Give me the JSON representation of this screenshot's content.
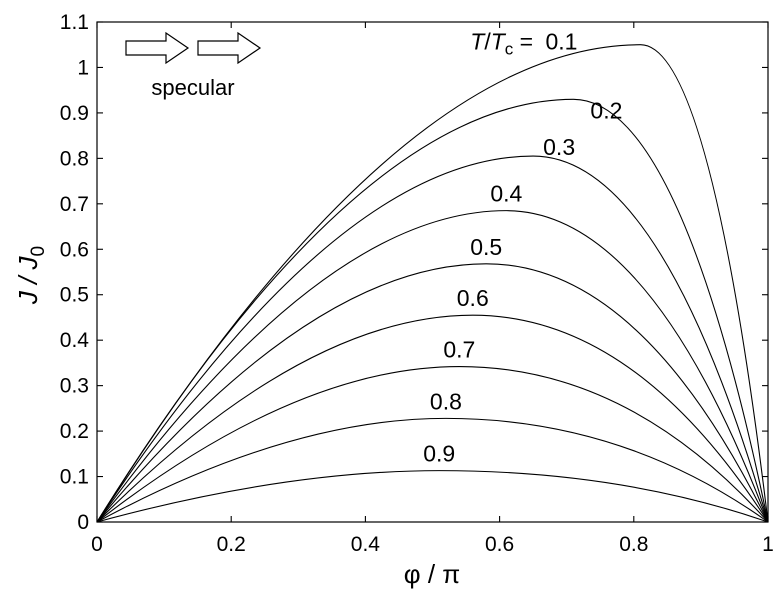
{
  "chart_data": {
    "type": "line",
    "title": "",
    "xlabel": {
      "main": "φ / π"
    },
    "ylabel": {
      "main": "J / J",
      "sub": "0"
    },
    "xlim": [
      0,
      1
    ],
    "ylim": [
      0,
      1.1
    ],
    "xticks": [
      0,
      0.2,
      0.4,
      0.6,
      0.8,
      1
    ],
    "yticks": [
      0,
      0.1,
      0.2,
      0.3,
      0.4,
      0.5,
      0.6,
      0.7,
      0.8,
      0.9,
      1,
      1.1
    ],
    "grid": false,
    "legend": "none",
    "temperature_label": {
      "T": "T",
      "slash": "/",
      "T2": "T",
      "sub": "c",
      "equals": " = "
    },
    "annotation_text": "specular",
    "line_color": "#000000",
    "series": [
      {
        "label": "0.1",
        "peak_x": 0.81,
        "peak_y": 1.05
      },
      {
        "label": "0.2",
        "peak_x": 0.71,
        "peak_y": 0.93
      },
      {
        "label": "0.3",
        "peak_x": 0.65,
        "peak_y": 0.805
      },
      {
        "label": "0.4",
        "peak_x": 0.61,
        "peak_y": 0.685
      },
      {
        "label": "0.5",
        "peak_x": 0.58,
        "peak_y": 0.568
      },
      {
        "label": "0.6",
        "peak_x": 0.56,
        "peak_y": 0.455
      },
      {
        "label": "0.7",
        "peak_x": 0.54,
        "peak_y": 0.342
      },
      {
        "label": "0.8",
        "peak_x": 0.52,
        "peak_y": 0.228
      },
      {
        "label": "0.9",
        "peak_x": 0.51,
        "peak_y": 0.113
      }
    ]
  }
}
